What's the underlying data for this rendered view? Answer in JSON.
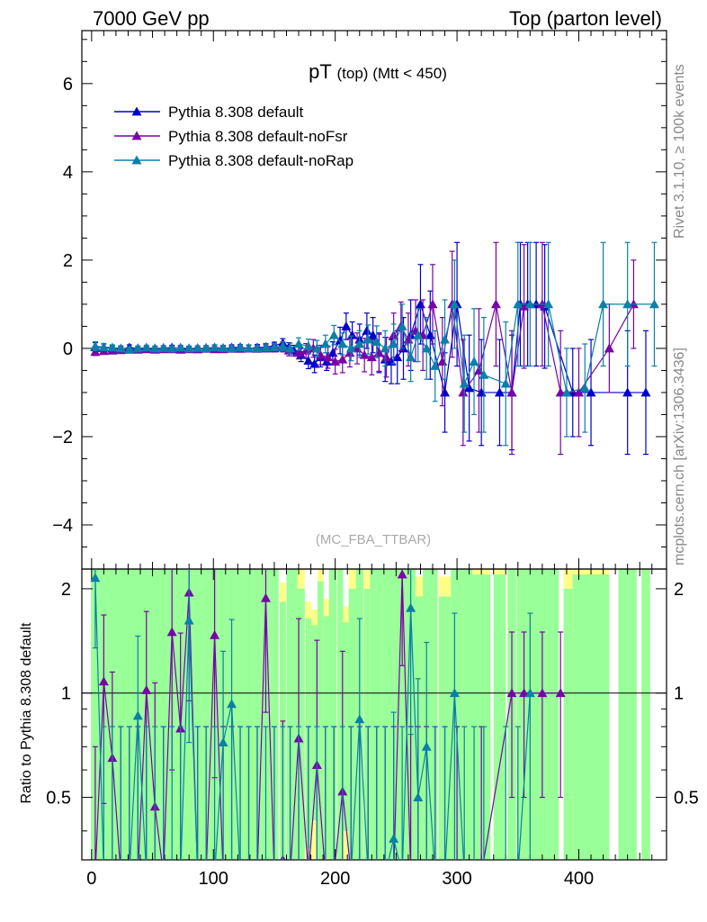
{
  "header": {
    "left": "7000 GeV pp",
    "right": "Top (parton level)"
  },
  "side_labels": {
    "rivet": "Rivet 3.1.10, ≥ 100k events",
    "mcplots": "mcplots.cern.ch [arXiv:1306.3436]"
  },
  "chart_data": {
    "type": "line",
    "title_main": "pT",
    "title_sub": "(top) (Mtt < 450)",
    "analysis_tag": "(MC_FBA_TTBAR)",
    "ylabel_ratio": "Ratio to Pythia 8.308 default",
    "xlim": [
      -8,
      472
    ],
    "ylim_main": [
      -5,
      7.2
    ],
    "ylim_ratio": [
      0.33,
      2.28
    ],
    "x_ticks": [
      0,
      100,
      200,
      300,
      400
    ],
    "y_ticks_main": [
      -4,
      -2,
      0,
      2,
      4,
      6
    ],
    "y_ticks_ratio": [
      0.5,
      1,
      2
    ],
    "legend": {
      "placement": "top-left",
      "entries": [
        {
          "label": "Pythia 8.308 default",
          "color": "#0000cc"
        },
        {
          "label": "Pythia 8.308 default-noFsr",
          "color": "#7a00a8"
        },
        {
          "label": "Pythia 8.308 default-noRap",
          "color": "#0a80a8"
        }
      ]
    },
    "series": [
      {
        "name": "Pythia 8.308 default",
        "color": "#0000cc",
        "x": [
          3,
          10,
          17,
          24,
          31,
          38,
          45,
          52,
          59,
          66,
          73,
          80,
          87,
          94,
          101,
          108,
          115,
          122,
          129,
          136,
          143,
          150,
          157,
          162,
          166,
          172,
          178,
          183,
          188,
          193,
          198,
          204,
          209,
          214,
          220,
          226,
          231,
          236,
          241,
          246,
          251,
          256,
          262,
          270,
          278,
          290,
          300,
          310,
          320,
          335,
          345,
          352,
          358,
          365,
          372,
          395,
          410,
          440,
          455
        ],
        "y": [
          0.03,
          0.02,
          0.0,
          -0.02,
          0.02,
          0.0,
          -0.01,
          0.0,
          0.01,
          0.02,
          0.0,
          0.0,
          -0.02,
          0.01,
          0.02,
          0.0,
          0.02,
          0.03,
          0.0,
          0.02,
          0.03,
          0.06,
          0.12,
          0.03,
          -0.05,
          -0.15,
          -0.28,
          -0.35,
          -0.2,
          -0.3,
          -0.1,
          0.18,
          0.5,
          0.3,
          0.2,
          0.4,
          0.3,
          -0.1,
          -0.25,
          -0.3,
          -0.2,
          0.0,
          0.3,
          1.0,
          0.3,
          -1.0,
          1.0,
          -0.9,
          -1.0,
          -1.0,
          -1.0,
          1.0,
          1.0,
          1.0,
          0.95,
          -1.0,
          -1.0,
          -1.0,
          -1.0
        ],
        "err": [
          0.1,
          0.08,
          0.06,
          0.06,
          0.06,
          0.05,
          0.05,
          0.05,
          0.05,
          0.05,
          0.05,
          0.05,
          0.05,
          0.05,
          0.06,
          0.06,
          0.06,
          0.06,
          0.07,
          0.07,
          0.08,
          0.08,
          0.1,
          0.1,
          0.12,
          0.15,
          0.18,
          0.2,
          0.22,
          0.2,
          0.25,
          0.3,
          0.3,
          0.3,
          0.35,
          0.4,
          0.4,
          0.45,
          0.5,
          0.5,
          0.6,
          0.7,
          0.8,
          0.9,
          1.0,
          0.9,
          1.4,
          1.2,
          1.2,
          1.2,
          1.3,
          1.4,
          1.4,
          1.4,
          1.4,
          1.0,
          1.2,
          1.4,
          1.4
        ]
      },
      {
        "name": "Pythia 8.308 default-noFsr",
        "color": "#7a00a8",
        "x": [
          3,
          10,
          17,
          24,
          31,
          38,
          45,
          52,
          59,
          66,
          73,
          80,
          87,
          94,
          101,
          108,
          115,
          122,
          129,
          136,
          143,
          150,
          157,
          162,
          170,
          176,
          182,
          188,
          194,
          200,
          206,
          212,
          218,
          224,
          230,
          236,
          242,
          248,
          254,
          260,
          266,
          272,
          280,
          288,
          296,
          305,
          318,
          332,
          345,
          355,
          370,
          385,
          400,
          425,
          445
        ],
        "y": [
          -0.08,
          -0.06,
          -0.05,
          -0.04,
          -0.03,
          -0.03,
          -0.02,
          -0.03,
          -0.02,
          -0.02,
          -0.03,
          -0.02,
          -0.02,
          -0.01,
          -0.02,
          -0.02,
          -0.01,
          -0.01,
          0.0,
          -0.01,
          0.0,
          0.0,
          0.02,
          -0.05,
          -0.1,
          -0.05,
          0.0,
          -0.15,
          -0.2,
          -0.3,
          -0.25,
          -0.1,
          0.0,
          -0.15,
          -0.2,
          -0.1,
          -0.2,
          0.3,
          0.5,
          0.2,
          0.4,
          0.3,
          1.0,
          -0.3,
          1.0,
          -1.0,
          -0.5,
          1.0,
          -1.0,
          0.95,
          1.0,
          -1.0,
          -1.0,
          0.0,
          1.0
        ],
        "err": [
          0.08,
          0.06,
          0.05,
          0.05,
          0.05,
          0.05,
          0.05,
          0.05,
          0.05,
          0.05,
          0.05,
          0.05,
          0.05,
          0.05,
          0.06,
          0.06,
          0.06,
          0.06,
          0.07,
          0.07,
          0.08,
          0.08,
          0.1,
          0.12,
          0.14,
          0.16,
          0.2,
          0.22,
          0.25,
          0.28,
          0.3,
          0.32,
          0.35,
          0.38,
          0.4,
          0.42,
          0.45,
          0.5,
          0.55,
          0.6,
          0.7,
          0.8,
          0.9,
          1.0,
          1.2,
          1.2,
          1.4,
          1.4,
          1.4,
          1.4,
          1.4,
          1.4,
          1.0,
          1.0,
          1.0
        ]
      },
      {
        "name": "Pythia 8.308 default-noRap",
        "color": "#0a80a8",
        "x": [
          3,
          10,
          17,
          24,
          31,
          38,
          45,
          52,
          59,
          66,
          73,
          80,
          87,
          94,
          101,
          108,
          115,
          122,
          129,
          136,
          143,
          150,
          157,
          163,
          170,
          178,
          185,
          192,
          199,
          206,
          213,
          220,
          227,
          234,
          241,
          248,
          255,
          262,
          268,
          275,
          282,
          290,
          298,
          306,
          314,
          322,
          340,
          350,
          360,
          375,
          390,
          405,
          420,
          440,
          462
        ],
        "y": [
          0.05,
          0.03,
          0.02,
          0.0,
          -0.02,
          0.0,
          0.02,
          0.0,
          0.01,
          0.0,
          0.02,
          0.0,
          0.01,
          0.0,
          0.02,
          0.01,
          0.0,
          0.02,
          0.01,
          0.0,
          0.02,
          0.03,
          0.05,
          0.0,
          0.1,
          0.05,
          0.0,
          0.1,
          0.3,
          0.1,
          0.0,
          0.1,
          0.2,
          0.15,
          0.0,
          0.1,
          0.5,
          -0.2,
          0.3,
          0.0,
          -0.4,
          0.2,
          1.0,
          -0.8,
          -0.3,
          -0.6,
          -0.8,
          1.0,
          1.0,
          1.0,
          -1.0,
          -0.9,
          1.0,
          1.0,
          1.0
        ],
        "err": [
          0.1,
          0.08,
          0.06,
          0.06,
          0.05,
          0.05,
          0.05,
          0.05,
          0.05,
          0.05,
          0.05,
          0.05,
          0.05,
          0.05,
          0.06,
          0.06,
          0.06,
          0.06,
          0.07,
          0.07,
          0.08,
          0.08,
          0.1,
          0.12,
          0.14,
          0.16,
          0.18,
          0.2,
          0.22,
          0.25,
          0.28,
          0.3,
          0.33,
          0.36,
          0.4,
          0.45,
          0.5,
          0.55,
          0.6,
          0.7,
          0.8,
          0.9,
          1.0,
          1.1,
          1.2,
          1.3,
          1.4,
          1.4,
          1.4,
          1.4,
          1.0,
          1.0,
          1.4,
          1.4,
          1.4
        ]
      }
    ],
    "ratio_bands": {
      "inner_color": "#99ff99",
      "outer_color": "#ffff88"
    },
    "ratio_series": [
      {
        "name": "Pythia 8.308 default-noFsr",
        "color": "#7a00a8",
        "x": [
          3,
          10,
          17,
          24,
          31,
          38,
          45,
          52,
          59,
          66,
          73,
          80,
          87,
          94,
          101,
          108,
          115,
          122,
          129,
          136,
          143,
          150,
          157,
          163,
          170,
          178,
          185,
          192,
          199,
          206,
          213,
          220,
          227,
          234,
          241,
          248,
          255,
          262,
          268,
          275,
          282,
          290,
          300,
          320,
          345,
          355,
          370,
          385
        ],
        "y": [
          0.3,
          1.08,
          0.65,
          0.3,
          0.3,
          0.3,
          1.02,
          0.47,
          0.3,
          1.5,
          0.79,
          1.95,
          0.3,
          0.3,
          1.47,
          0.3,
          0.3,
          0.3,
          0.3,
          0.3,
          1.88,
          0.3,
          0.33,
          0.3,
          0.74,
          0.3,
          0.62,
          0.3,
          0.3,
          0.52,
          0.3,
          0.3,
          0.3,
          0.3,
          0.3,
          0.3,
          2.2,
          0.3,
          0.3,
          0.3,
          0.3,
          0.3,
          0.3,
          0.3,
          1.0,
          1.0,
          1.0,
          1.0
        ],
        "err": [
          0.4,
          0.6,
          0.5,
          0.5,
          0.5,
          0.5,
          0.7,
          0.6,
          0.5,
          0.9,
          0.7,
          1.0,
          0.5,
          0.5,
          0.9,
          0.5,
          0.5,
          0.5,
          0.5,
          0.5,
          1.0,
          0.5,
          0.5,
          0.5,
          0.9,
          0.5,
          0.8,
          0.5,
          0.5,
          0.8,
          0.5,
          0.5,
          0.5,
          0.5,
          0.5,
          0.5,
          1.0,
          0.5,
          0.5,
          0.5,
          0.5,
          0.5,
          0.5,
          0.5,
          0.5,
          0.5,
          0.5,
          0.5
        ]
      },
      {
        "name": "Pythia 8.308 default-noRap",
        "color": "#0a80a8",
        "x": [
          3,
          10,
          17,
          24,
          31,
          38,
          45,
          52,
          59,
          66,
          73,
          80,
          87,
          94,
          101,
          108,
          115,
          122,
          129,
          136,
          143,
          150,
          157,
          163,
          170,
          178,
          185,
          192,
          199,
          206,
          213,
          220,
          227,
          234,
          241,
          248,
          255,
          262,
          268,
          275,
          282,
          290,
          298,
          306,
          314,
          322,
          340,
          350,
          360
        ],
        "y": [
          2.15,
          0.3,
          0.3,
          0.3,
          0.3,
          0.86,
          0.3,
          0.3,
          0.3,
          0.3,
          0.3,
          1.62,
          0.3,
          0.3,
          0.3,
          0.72,
          0.93,
          0.3,
          0.3,
          0.3,
          0.3,
          0.3,
          0.3,
          0.3,
          0.3,
          0.3,
          0.3,
          0.3,
          0.3,
          0.3,
          0.3,
          0.84,
          0.3,
          0.3,
          0.3,
          0.38,
          0.3,
          1.76,
          0.5,
          0.7,
          0.3,
          0.3,
          1.0,
          0.3,
          0.3,
          0.3,
          0.3,
          0.3,
          1.0
        ],
        "err": [
          0.8,
          0.5,
          0.5,
          0.5,
          0.5,
          0.6,
          0.5,
          0.5,
          0.5,
          0.5,
          0.5,
          0.9,
          0.5,
          0.5,
          0.5,
          0.6,
          0.7,
          0.5,
          0.5,
          0.5,
          0.5,
          0.5,
          0.5,
          0.5,
          0.5,
          0.5,
          0.5,
          0.5,
          0.5,
          0.5,
          0.5,
          0.8,
          0.5,
          0.5,
          0.5,
          0.5,
          0.5,
          1.0,
          0.6,
          0.7,
          0.5,
          0.5,
          0.7,
          0.5,
          0.5,
          0.5,
          0.5,
          0.5,
          0.7
        ]
      }
    ]
  }
}
